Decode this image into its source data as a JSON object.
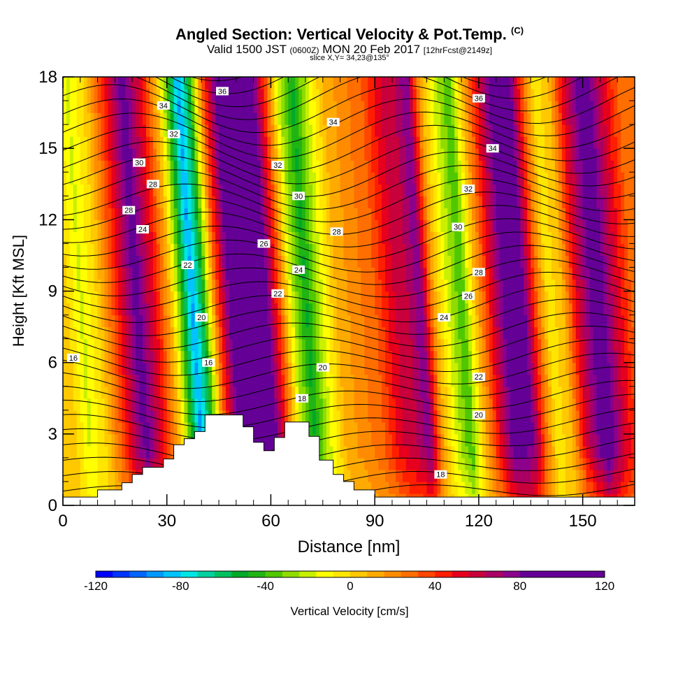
{
  "titles": {
    "main": "Angled Section: Vertical Velocity & Pot.Temp.",
    "main_unit": "(C)",
    "valid_a": "Valid 1500 JST",
    "valid_z": "(0600Z)",
    "valid_b": "MON 20 Feb 2017",
    "valid_fcst": "[12hrFcst@2149z]",
    "slice": "slice X,Y= 34,23@135°"
  },
  "chart_data": {
    "type": "heatmap",
    "xlabel": "Distance [nm]",
    "ylabel": "Height [Kft MSL]",
    "xlim": [
      0,
      165
    ],
    "ylim": [
      0,
      18
    ],
    "xticks": [
      0,
      30,
      60,
      90,
      120,
      150
    ],
    "yticks": [
      0,
      3,
      6,
      9,
      12,
      15,
      18
    ],
    "colorbar": {
      "label": "Vertical Velocity [cm/s]",
      "range": [
        -120,
        120
      ],
      "step": 8,
      "tick_labels": [
        -120,
        -80,
        -40,
        0,
        40,
        80,
        120
      ],
      "colors": [
        "#0000ff",
        "#0033ff",
        "#0066ff",
        "#0099ff",
        "#00c3ff",
        "#00e6e6",
        "#00d2a0",
        "#00c060",
        "#00aa28",
        "#20b414",
        "#50c800",
        "#90dc00",
        "#c8f000",
        "#ffff00",
        "#ffe600",
        "#ffc800",
        "#ffaa00",
        "#ff8c00",
        "#ff6e00",
        "#ff4600",
        "#ff1e00",
        "#e6001e",
        "#c8003c",
        "#aa0064",
        "#8c008c",
        "#640096"
      ]
    },
    "velocity_columns": [
      {
        "x": 0,
        "v": 6
      },
      {
        "x": 5,
        "v": -18
      },
      {
        "x": 10,
        "v": 2
      },
      {
        "x": 15,
        "v": 40
      },
      {
        "x": 21,
        "v": 88
      },
      {
        "x": 27,
        "v": 45
      },
      {
        "x": 31,
        "v": 6
      },
      {
        "x": 34,
        "v": -40
      },
      {
        "x": 37,
        "v": -90
      },
      {
        "x": 40,
        "v": -55
      },
      {
        "x": 44,
        "v": 30
      },
      {
        "x": 48,
        "v": 85
      },
      {
        "x": 53,
        "v": 116
      },
      {
        "x": 58,
        "v": 92
      },
      {
        "x": 62,
        "v": 40
      },
      {
        "x": 66,
        "v": -20
      },
      {
        "x": 70,
        "v": -50
      },
      {
        "x": 74,
        "v": -20
      },
      {
        "x": 79,
        "v": 10
      },
      {
        "x": 85,
        "v": 22
      },
      {
        "x": 90,
        "v": 32
      },
      {
        "x": 95,
        "v": 55
      },
      {
        "x": 100,
        "v": 65
      },
      {
        "x": 103,
        "v": 80
      },
      {
        "x": 107,
        "v": 12
      },
      {
        "x": 111,
        "v": -18
      },
      {
        "x": 115,
        "v": -40
      },
      {
        "x": 119,
        "v": 8
      },
      {
        "x": 123,
        "v": 48
      },
      {
        "x": 128,
        "v": 92
      },
      {
        "x": 133,
        "v": 80
      },
      {
        "x": 137,
        "v": 25
      },
      {
        "x": 140,
        "v": -6
      },
      {
        "x": 144,
        "v": 8
      },
      {
        "x": 148,
        "v": 52
      },
      {
        "x": 154,
        "v": 95
      },
      {
        "x": 159,
        "v": 60
      },
      {
        "x": 165,
        "v": 25
      }
    ],
    "terrain_kft": [
      {
        "x": 0,
        "h": 0.35
      },
      {
        "x": 10,
        "h": 0.35
      },
      {
        "x": 10,
        "h": 0.65
      },
      {
        "x": 17,
        "h": 0.65
      },
      {
        "x": 17,
        "h": 0.95
      },
      {
        "x": 20,
        "h": 0.95
      },
      {
        "x": 20,
        "h": 1.3
      },
      {
        "x": 23,
        "h": 1.3
      },
      {
        "x": 23,
        "h": 1.6
      },
      {
        "x": 29,
        "h": 1.6
      },
      {
        "x": 29,
        "h": 1.95
      },
      {
        "x": 32,
        "h": 1.95
      },
      {
        "x": 32,
        "h": 2.55
      },
      {
        "x": 35,
        "h": 2.55
      },
      {
        "x": 35,
        "h": 2.8
      },
      {
        "x": 38,
        "h": 2.8
      },
      {
        "x": 38,
        "h": 3.1
      },
      {
        "x": 41,
        "h": 3.1
      },
      {
        "x": 41,
        "h": 3.8
      },
      {
        "x": 52,
        "h": 3.8
      },
      {
        "x": 52,
        "h": 3.3
      },
      {
        "x": 55,
        "h": 3.3
      },
      {
        "x": 55,
        "h": 2.65
      },
      {
        "x": 58,
        "h": 2.65
      },
      {
        "x": 58,
        "h": 2.3
      },
      {
        "x": 61,
        "h": 2.3
      },
      {
        "x": 61,
        "h": 2.85
      },
      {
        "x": 64,
        "h": 2.85
      },
      {
        "x": 64,
        "h": 3.5
      },
      {
        "x": 71,
        "h": 3.5
      },
      {
        "x": 71,
        "h": 2.9
      },
      {
        "x": 74,
        "h": 2.9
      },
      {
        "x": 74,
        "h": 1.9
      },
      {
        "x": 78,
        "h": 1.9
      },
      {
        "x": 78,
        "h": 1.3
      },
      {
        "x": 81,
        "h": 1.3
      },
      {
        "x": 81,
        "h": 1.0
      },
      {
        "x": 84,
        "h": 1.0
      },
      {
        "x": 84,
        "h": 0.65
      },
      {
        "x": 90,
        "h": 0.65
      },
      {
        "x": 90,
        "h": 0.35
      },
      {
        "x": 165,
        "h": 0.35
      }
    ],
    "theta_contour_labels": [
      {
        "text": "36",
        "x": 46,
        "y": 17.4
      },
      {
        "text": "34",
        "x": 29,
        "y": 16.8
      },
      {
        "text": "34",
        "x": 78,
        "y": 16.1
      },
      {
        "text": "32",
        "x": 32,
        "y": 15.6
      },
      {
        "text": "30",
        "x": 22,
        "y": 14.4
      },
      {
        "text": "28",
        "x": 26,
        "y": 13.5
      },
      {
        "text": "32",
        "x": 62,
        "y": 14.3
      },
      {
        "text": "28",
        "x": 19,
        "y": 12.4
      },
      {
        "text": "24",
        "x": 23,
        "y": 11.6
      },
      {
        "text": "30",
        "x": 68,
        "y": 13.0
      },
      {
        "text": "28",
        "x": 79,
        "y": 11.5
      },
      {
        "text": "26",
        "x": 58,
        "y": 11.0
      },
      {
        "text": "22",
        "x": 36,
        "y": 10.1
      },
      {
        "text": "24",
        "x": 68,
        "y": 9.9
      },
      {
        "text": "22",
        "x": 62,
        "y": 8.9
      },
      {
        "text": "20",
        "x": 40,
        "y": 7.9
      },
      {
        "text": "16",
        "x": 3,
        "y": 6.2
      },
      {
        "text": "16",
        "x": 42,
        "y": 6.0
      },
      {
        "text": "20",
        "x": 75,
        "y": 5.8
      },
      {
        "text": "18",
        "x": 69,
        "y": 4.5
      },
      {
        "text": "36",
        "x": 120,
        "y": 17.1
      },
      {
        "text": "34",
        "x": 124,
        "y": 15.0
      },
      {
        "text": "32",
        "x": 117,
        "y": 13.3
      },
      {
        "text": "30",
        "x": 114,
        "y": 11.7
      },
      {
        "text": "28",
        "x": 120,
        "y": 9.8
      },
      {
        "text": "26",
        "x": 117,
        "y": 8.8
      },
      {
        "text": "24",
        "x": 110,
        "y": 7.9
      },
      {
        "text": "22",
        "x": 120,
        "y": 5.4
      },
      {
        "text": "20",
        "x": 120,
        "y": 3.8
      },
      {
        "text": "18",
        "x": 109,
        "y": 1.3
      }
    ]
  }
}
